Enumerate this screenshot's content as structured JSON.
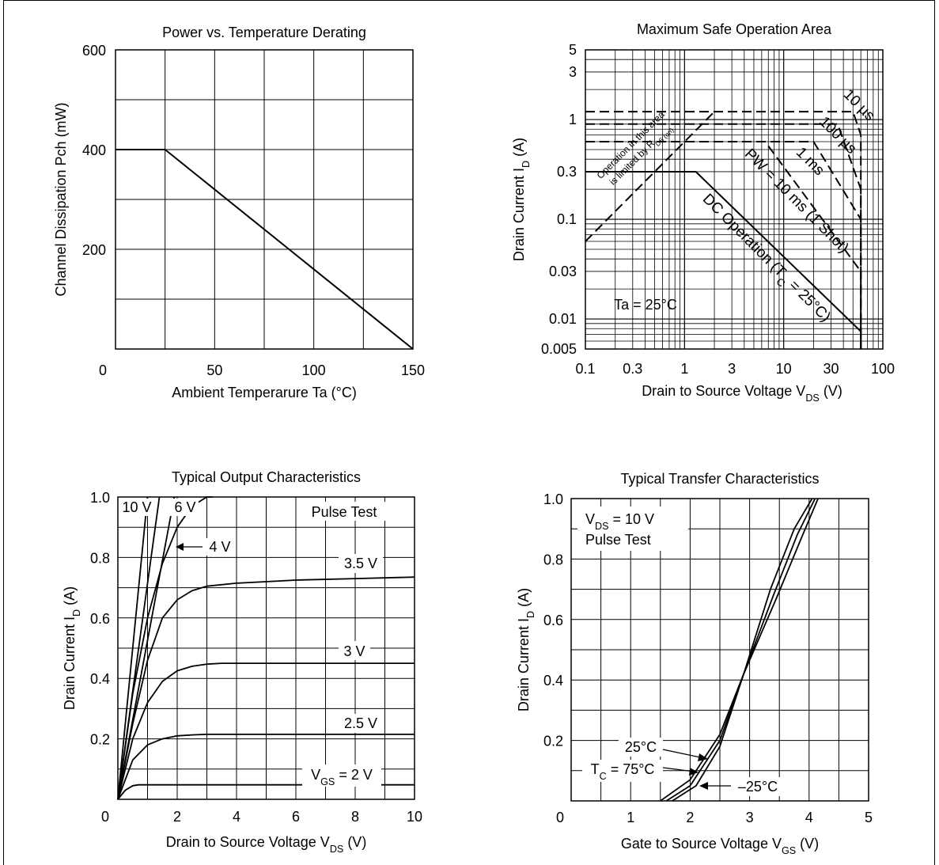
{
  "chart_data": [
    {
      "type": "line",
      "title": "Power vs. Temperature Derating",
      "xlabel": "Ambient Temperarure  Ta  (°C)",
      "ylabel": "Channel Dissipation  Pch  (mW)",
      "xlim": [
        0,
        150
      ],
      "ylim": [
        0,
        600
      ],
      "x_ticks": [
        "0",
        "50",
        "100",
        "150"
      ],
      "y_ticks": [
        "200",
        "400",
        "600"
      ],
      "grid": true,
      "series": [
        {
          "x": [
            0,
            25,
            150
          ],
          "y": [
            400,
            400,
            0
          ]
        }
      ]
    },
    {
      "type": "line",
      "title": "Maximum Safe Operation Area",
      "xlabel": "Drain to Source Voltage  V",
      "xlabel_sub": "DS",
      "xlabel_unit": "(V)",
      "ylabel": "Drain Current  I",
      "ylabel_sub": "D",
      "ylabel_unit": "(A)",
      "xscale": "log",
      "yscale": "log",
      "xlim": [
        0.1,
        100
      ],
      "ylim": [
        0.005,
        5
      ],
      "x_ticks": [
        "0.1",
        "0.3",
        "1",
        "3",
        "10",
        "30",
        "100"
      ],
      "y_ticks": [
        "0.005",
        "0.01",
        "0.03",
        "0.1",
        "0.3",
        "1",
        "3",
        "5"
      ],
      "grid": true,
      "series": [
        {
          "label": "DC Operation (T",
          "label_sub": "C",
          "label_tail": " = 25°C)",
          "dash": false,
          "x": [
            0.1,
            1.3,
            60,
            60
          ],
          "y": [
            0.3,
            0.3,
            0.0075,
            0.005
          ]
        },
        {
          "label": "PW = 10 ms (1 Shot)",
          "dash": true,
          "x": [
            0.1,
            6.5,
            60,
            60
          ],
          "y": [
            0.6,
            0.6,
            0.03,
            0.005
          ]
        },
        {
          "label": "1 ms",
          "dash": true,
          "x": [
            0.1,
            20,
            60,
            60
          ],
          "y": [
            0.6,
            0.6,
            0.1,
            0.005
          ]
        },
        {
          "label": "100 µs",
          "dash": true,
          "x": [
            0.1,
            35,
            60,
            60
          ],
          "y": [
            0.9,
            0.9,
            0.2,
            0.005
          ]
        },
        {
          "label": "10 µs",
          "dash": true,
          "x": [
            0.1,
            50,
            60,
            60
          ],
          "y": [
            1.2,
            1.2,
            0.7,
            0.005
          ]
        },
        {
          "label": "Operation in this area",
          "label2": "is limited by R",
          "label2_sub": "DS (on)",
          "dash": true,
          "x": [
            0.1,
            2
          ],
          "y": [
            0.06,
            1.2
          ]
        }
      ],
      "annotation": "Ta = 25°C"
    },
    {
      "type": "line",
      "title": "Typical Output Characteristics",
      "xlabel": "Drain to Source Voltage  V",
      "xlabel_sub": "DS",
      "xlabel_unit": "(V)",
      "ylabel": "Drain Current  I",
      "ylabel_sub": "D",
      "ylabel_unit": "(A)",
      "xlim": [
        0,
        10
      ],
      "ylim": [
        0,
        1.0
      ],
      "x_ticks": [
        "0",
        "2",
        "4",
        "6",
        "8",
        "10"
      ],
      "y_ticks": [
        "0.2",
        "0.4",
        "0.6",
        "0.8",
        "1.0"
      ],
      "grid": true,
      "annotation": "Pulse Test",
      "series": [
        {
          "label": "10 V",
          "x": [
            0,
            1.0
          ],
          "y": [
            0,
            1.0
          ]
        },
        {
          "label": "6 V",
          "x": [
            0,
            1.4
          ],
          "y": [
            0,
            1.0
          ]
        },
        {
          "label": "",
          "x": [
            0,
            1.9
          ],
          "y": [
            0,
            1.0
          ]
        },
        {
          "label": "4 V",
          "x": [
            0,
            0.5,
            1.0,
            1.5,
            2.0,
            2.5,
            3.0,
            3.2
          ],
          "y": [
            0,
            0.35,
            0.6,
            0.78,
            0.9,
            0.97,
            1.0,
            1.0
          ]
        },
        {
          "label": "3.5 V",
          "x": [
            0,
            0.5,
            1.0,
            1.5,
            2.0,
            2.5,
            3.0,
            4.0,
            5.0,
            6.0,
            8.0,
            10.0
          ],
          "y": [
            0,
            0.25,
            0.46,
            0.6,
            0.66,
            0.69,
            0.705,
            0.715,
            0.72,
            0.725,
            0.73,
            0.735
          ]
        },
        {
          "label": "3 V",
          "x": [
            0,
            0.5,
            1.0,
            1.5,
            2.0,
            2.5,
            3.0,
            3.5,
            4.0,
            6.0,
            8.0,
            10.0
          ],
          "y": [
            0,
            0.2,
            0.32,
            0.39,
            0.425,
            0.44,
            0.447,
            0.45,
            0.45,
            0.45,
            0.45,
            0.45
          ]
        },
        {
          "label": "2.5 V",
          "x": [
            0,
            0.5,
            1.0,
            1.5,
            2.0,
            2.5,
            3.0,
            4.0,
            6.0,
            8.0,
            10.0
          ],
          "y": [
            0,
            0.13,
            0.18,
            0.2,
            0.21,
            0.213,
            0.215,
            0.215,
            0.215,
            0.215,
            0.215
          ]
        },
        {
          "label": "V",
          "label_sub": "GS",
          "label_tail": " = 2 V",
          "x": [
            0,
            0.25,
            0.5,
            0.7,
            1.0,
            2.0,
            4.0,
            6.0,
            8.0,
            10.0
          ],
          "y": [
            0,
            0.03,
            0.045,
            0.048,
            0.048,
            0.048,
            0.048,
            0.048,
            0.048,
            0.048
          ]
        }
      ]
    },
    {
      "type": "line",
      "title": "Typical Transfer Characteristics",
      "xlabel": "Gate to Source Voltage  V",
      "xlabel_sub": "GS",
      "xlabel_unit": "(V)",
      "ylabel": "Drain Current  I",
      "ylabel_sub": "D",
      "ylabel_unit": "(A)",
      "xlim": [
        0,
        5
      ],
      "ylim": [
        0,
        1.0
      ],
      "x_ticks": [
        "0",
        "1",
        "2",
        "3",
        "4",
        "5"
      ],
      "y_ticks": [
        "0.2",
        "0.4",
        "0.6",
        "0.8",
        "1.0"
      ],
      "grid": true,
      "annotation_lines": [
        "V",
        "Pulse Test"
      ],
      "annotation_sub": "DS",
      "annotation_tail": " = 10 V",
      "series": [
        {
          "label": "25°C",
          "x": [
            1.6,
            2.0,
            2.5,
            2.9,
            3.4,
            3.8,
            4.1
          ],
          "y": [
            0.0,
            0.05,
            0.2,
            0.42,
            0.68,
            0.88,
            1.0
          ]
        },
        {
          "label": "T",
          "label_sub": "C",
          "label_tail": " = 75°C",
          "x": [
            1.5,
            2.0,
            2.5,
            2.9,
            3.35,
            3.75,
            4.05
          ],
          "y": [
            0.0,
            0.07,
            0.22,
            0.42,
            0.7,
            0.9,
            1.0
          ]
        },
        {
          "label": "–25°C",
          "x": [
            1.7,
            2.1,
            2.5,
            2.9,
            3.45,
            3.85,
            4.15
          ],
          "y": [
            0.0,
            0.05,
            0.18,
            0.42,
            0.67,
            0.86,
            1.0
          ]
        }
      ]
    }
  ]
}
